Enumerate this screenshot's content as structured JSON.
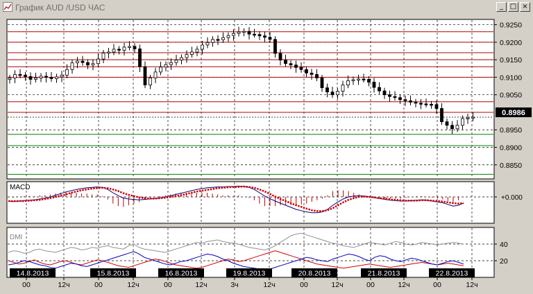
{
  "window": {
    "title": "График AUD /USD ЧАС",
    "min_symbol": "_",
    "max_symbol": "□",
    "close_symbol": "×"
  },
  "chart_data": [
    {
      "type": "candlestick",
      "pair": "AUD /USD",
      "timeframe": "ЧАС",
      "ylim": [
        0.881,
        0.9265
      ],
      "y_ticks": [
        "0.9250",
        "0.9200",
        "0.9150",
        "0.9100",
        "0.9050",
        "0.8950",
        "0.8900",
        "0.8850"
      ],
      "last_price": "0.8986",
      "red_levels": [
        0.923,
        0.92,
        0.917,
        0.915,
        0.913,
        0.91,
        0.903,
        0.9
      ],
      "green_levels": [
        0.8937,
        0.8905,
        0.8823
      ],
      "close_series": [
        0.9098,
        0.9108,
        0.9106,
        0.9102,
        0.9094,
        0.9098,
        0.9103,
        0.91,
        0.9096,
        0.9101,
        0.9106,
        0.9122,
        0.9141,
        0.9146,
        0.9142,
        0.9135,
        0.9139,
        0.9152,
        0.9169,
        0.9172,
        0.918,
        0.9177,
        0.9186,
        0.9188,
        0.9181,
        0.913,
        0.9078,
        0.9098,
        0.9115,
        0.9129,
        0.9136,
        0.9142,
        0.9149,
        0.9156,
        0.9165,
        0.9172,
        0.918,
        0.9192,
        0.9199,
        0.9208,
        0.9207,
        0.9213,
        0.9219,
        0.9225,
        0.9229,
        0.9231,
        0.9223,
        0.9222,
        0.9218,
        0.9214,
        0.9208,
        0.9168,
        0.9149,
        0.9139,
        0.9135,
        0.9128,
        0.9122,
        0.9112,
        0.9108,
        0.9098,
        0.907,
        0.9058,
        0.905,
        0.906,
        0.9078,
        0.909,
        0.9093,
        0.9095,
        0.9094,
        0.9086,
        0.9071,
        0.9061,
        0.905,
        0.9045,
        0.9042,
        0.9036,
        0.9033,
        0.9029,
        0.9026,
        0.9024,
        0.9023,
        0.9022,
        0.9011,
        0.8973,
        0.8963,
        0.8953,
        0.8963,
        0.8982,
        0.8984,
        0.8986
      ],
      "candle_start_x": 14,
      "candle_step_x": 7.5
    },
    {
      "type": "line",
      "name": "MACD",
      "zero_label": "0.000",
      "macd_line": [
        -10,
        -11,
        -10,
        -9,
        -8,
        -7,
        -5,
        -3,
        0,
        4,
        8,
        12,
        15,
        18,
        20,
        22,
        23,
        24,
        23,
        18,
        10,
        3,
        -3,
        -5,
        -6,
        -7,
        -6,
        -5,
        -4,
        -2,
        0,
        3,
        6,
        9,
        12,
        15,
        18,
        20,
        22,
        23,
        24,
        24,
        25,
        25,
        26,
        25,
        23,
        18,
        10,
        2,
        -4,
        -10,
        -15,
        -20,
        -25,
        -30,
        -33,
        -36,
        -38,
        -38,
        -36,
        -30,
        -20,
        -12,
        -5,
        0,
        2,
        3,
        2,
        0,
        -2,
        -4,
        -6,
        -8,
        -9,
        -10,
        -10,
        -9,
        -8,
        -7,
        -8,
        -10,
        -12,
        -14,
        -18,
        -22,
        -20,
        -15
      ],
      "signal_line": [
        -10,
        -10,
        -10,
        -10,
        -9,
        -8,
        -7,
        -5,
        -3,
        0,
        3,
        6,
        10,
        13,
        16,
        18,
        20,
        21,
        22,
        21,
        18,
        14,
        9,
        5,
        2,
        -1,
        -3,
        -4,
        -4,
        -3,
        -2,
        0,
        2,
        4,
        7,
        10,
        13,
        15,
        17,
        19,
        21,
        22,
        23,
        24,
        24,
        25,
        24,
        22,
        18,
        13,
        7,
        1,
        -5,
        -10,
        -15,
        -20,
        -24,
        -28,
        -32,
        -34,
        -34,
        -32,
        -27,
        -20,
        -13,
        -7,
        -3,
        0,
        1,
        0,
        -1,
        -3,
        -4,
        -6,
        -7,
        -8,
        -9,
        -9,
        -9,
        -8,
        -8,
        -9,
        -10,
        -11,
        -13,
        -15,
        -16,
        -15
      ]
    },
    {
      "type": "line",
      "name": "DMI",
      "y_ticks": [
        "40",
        "20"
      ],
      "ylim": [
        0,
        60
      ],
      "adx": [
        30,
        32,
        31,
        29,
        30,
        33,
        34,
        32,
        31,
        30,
        32,
        34,
        36,
        35,
        33,
        34,
        36,
        35,
        37,
        38,
        36,
        35,
        34,
        38,
        40,
        36,
        34,
        33,
        32,
        31,
        30,
        32,
        34,
        36,
        38,
        40,
        42,
        41,
        43,
        44,
        45,
        43,
        42,
        41,
        40,
        38,
        36,
        35,
        34,
        33,
        35,
        38,
        42,
        46,
        50,
        52,
        53,
        51,
        49,
        47,
        45,
        43,
        41,
        40,
        38,
        37,
        36,
        38,
        40,
        42,
        41,
        40,
        39,
        41,
        43,
        42,
        40,
        39,
        40,
        42,
        41,
        40,
        39,
        40,
        41,
        42,
        41,
        40
      ],
      "plus_di": [
        15,
        16,
        18,
        20,
        19,
        17,
        15,
        14,
        12,
        11,
        13,
        15,
        17,
        16,
        14,
        13,
        15,
        17,
        19,
        21,
        23,
        25,
        27,
        29,
        31,
        28,
        24,
        22,
        20,
        18,
        16,
        15,
        17,
        19,
        20,
        22,
        24,
        26,
        28,
        27,
        25,
        22,
        20,
        17,
        15,
        13,
        12,
        11,
        10,
        9,
        10,
        12,
        14,
        16,
        18,
        20,
        22,
        24,
        23,
        21,
        20,
        19,
        22,
        24,
        26,
        28,
        27,
        25,
        22,
        20,
        24,
        26,
        25,
        22,
        20,
        19,
        21,
        23,
        22,
        20,
        18,
        16,
        15,
        17,
        19,
        20,
        18,
        16
      ],
      "minus_di": [
        20,
        18,
        16,
        17,
        19,
        21,
        18,
        16,
        15,
        17,
        19,
        20,
        18,
        16,
        15,
        17,
        19,
        21,
        20,
        18,
        16,
        14,
        13,
        12,
        14,
        16,
        18,
        20,
        22,
        21,
        19,
        17,
        15,
        14,
        13,
        12,
        11,
        12,
        14,
        16,
        18,
        20,
        22,
        21,
        19,
        20,
        22,
        24,
        26,
        28,
        30,
        32,
        30,
        28,
        26,
        24,
        22,
        20,
        18,
        16,
        15,
        14,
        13,
        12,
        11,
        12,
        13,
        14,
        15,
        16,
        15,
        14,
        13,
        12,
        13,
        14,
        15,
        16,
        17,
        18,
        17,
        16,
        15,
        16,
        17,
        16,
        15,
        14
      ]
    },
    {
      "type": "axis",
      "dates": [
        "14.8.2013",
        "15.8.2013",
        "16.8.2013",
        "19.8.2013",
        "20.8.2013",
        "21.8.2013",
        "22.8.2013"
      ],
      "hour_labels": [
        "00",
        "12ч",
        "00",
        "12ч",
        "00",
        "12ч",
        "3ч",
        "12ч",
        "00",
        "12ч",
        "00",
        "12ч",
        "00",
        "12ч"
      ]
    }
  ]
}
